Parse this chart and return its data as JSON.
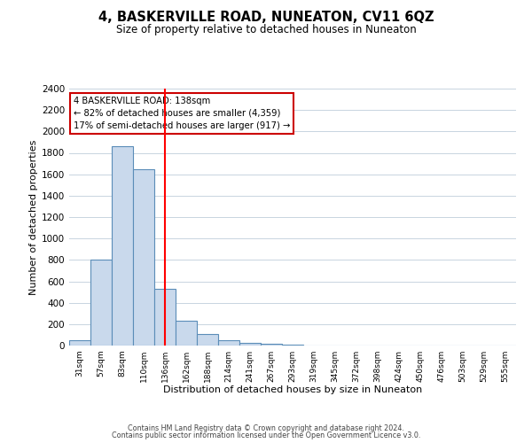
{
  "title": "4, BASKERVILLE ROAD, NUNEATON, CV11 6QZ",
  "subtitle": "Size of property relative to detached houses in Nuneaton",
  "xlabel": "Distribution of detached houses by size in Nuneaton",
  "ylabel": "Number of detached properties",
  "bin_labels": [
    "31sqm",
    "57sqm",
    "83sqm",
    "110sqm",
    "136sqm",
    "162sqm",
    "188sqm",
    "214sqm",
    "241sqm",
    "267sqm",
    "293sqm",
    "319sqm",
    "345sqm",
    "372sqm",
    "398sqm",
    "424sqm",
    "450sqm",
    "476sqm",
    "503sqm",
    "529sqm",
    "555sqm"
  ],
  "bar_heights": [
    50,
    800,
    1860,
    1650,
    530,
    235,
    105,
    50,
    25,
    15,
    5,
    0,
    0,
    0,
    0,
    0,
    0,
    0,
    0,
    0,
    0
  ],
  "bar_color": "#c9d9ec",
  "bar_edge_color": "#5b8db8",
  "red_line_bin": 4,
  "ylim": [
    0,
    2400
  ],
  "yticks": [
    0,
    200,
    400,
    600,
    800,
    1000,
    1200,
    1400,
    1600,
    1800,
    2000,
    2200,
    2400
  ],
  "annotation_title": "4 BASKERVILLE ROAD: 138sqm",
  "annotation_line1": "← 82% of detached houses are smaller (4,359)",
  "annotation_line2": "17% of semi-detached houses are larger (917) →",
  "footer_line1": "Contains HM Land Registry data © Crown copyright and database right 2024.",
  "footer_line2": "Contains public sector information licensed under the Open Government Licence v3.0.",
  "bg_color": "#ffffff",
  "grid_color": "#c8d4e0"
}
